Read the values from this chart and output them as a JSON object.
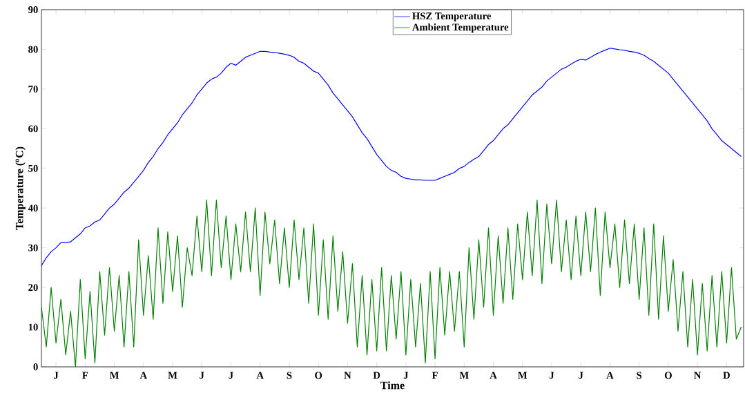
{
  "chart_data": {
    "type": "line",
    "xlabel": "Time",
    "ylabel": "Temperature ($^{o}$C)",
    "ylim": [
      0,
      90
    ],
    "yticks": [
      0,
      10,
      20,
      30,
      40,
      50,
      60,
      70,
      80,
      90
    ],
    "categories": [
      null,
      null,
      null,
      "J",
      null,
      null,
      null,
      null,
      null,
      "F",
      null,
      null,
      null,
      null,
      null,
      "M",
      null,
      null,
      null,
      null,
      null,
      "A",
      null,
      null,
      null,
      null,
      null,
      "M",
      null,
      null,
      null,
      null,
      null,
      "J",
      null,
      null,
      null,
      null,
      null,
      "J",
      null,
      null,
      null,
      null,
      null,
      "A",
      null,
      null,
      null,
      null,
      null,
      "S",
      null,
      null,
      null,
      null,
      null,
      "O",
      null,
      null,
      null,
      null,
      null,
      "N",
      null,
      null,
      null,
      null,
      null,
      "D",
      null,
      null,
      null,
      null,
      null,
      "J",
      null,
      null,
      null,
      null,
      null,
      "F",
      null,
      null,
      null,
      null,
      null,
      "M",
      null,
      null,
      null,
      null,
      null,
      "A",
      null,
      null,
      null,
      null,
      null,
      "M",
      null,
      null,
      null,
      null,
      null,
      "J",
      null,
      null,
      null,
      null,
      null,
      "J",
      null,
      null,
      null,
      null,
      null,
      "A",
      null,
      null,
      null,
      null,
      null,
      "S",
      null,
      null,
      null,
      null,
      null,
      "O",
      null,
      null,
      null,
      null,
      null,
      "N",
      null,
      null,
      null,
      null,
      null,
      "D",
      null,
      null,
      null
    ],
    "legend": "top",
    "marker": "none",
    "line_style": "solid",
    "series": [
      {
        "name": "HSZ Temperature",
        "color": "#0000ff",
        "values": [
          25.5,
          27.5,
          29,
          30,
          31.3,
          31.3,
          31.5,
          32.5,
          33.5,
          35,
          35.5,
          36.5,
          37,
          38.5,
          40,
          41,
          42.5,
          44,
          45,
          46.5,
          48,
          49.5,
          51.5,
          53,
          55,
          56.5,
          58.5,
          60,
          61.5,
          63.5,
          65,
          66.5,
          68.5,
          70,
          71.5,
          72.5,
          73,
          74,
          75.5,
          76.5,
          76,
          77,
          78,
          78.5,
          79,
          79.5,
          79.5,
          79.3,
          79.2,
          79,
          78.8,
          78.5,
          78,
          77,
          76.5,
          75.5,
          74.5,
          74,
          72.5,
          71,
          69,
          67.5,
          66,
          64.5,
          63,
          61,
          59,
          57.5,
          55.5,
          53.5,
          52,
          50.5,
          49.5,
          49,
          48,
          47.5,
          47.3,
          47.1,
          47.1,
          47,
          47,
          47,
          47.5,
          48,
          48.5,
          49,
          50,
          50.5,
          51.5,
          52.3,
          53,
          54.5,
          56,
          57,
          58.5,
          60,
          61,
          62.5,
          64,
          65.5,
          67,
          68.5,
          69.5,
          70.5,
          72,
          73,
          74,
          75,
          75.5,
          76.3,
          77,
          77.5,
          77.3,
          78,
          78.7,
          79.3,
          79.8,
          80.3,
          80.1,
          79.9,
          79.8,
          79.5,
          79.3,
          79,
          78.5,
          77.7,
          77,
          76,
          75,
          74,
          72.5,
          71,
          69.5,
          68,
          66.5,
          65,
          63.5,
          62,
          60,
          58.5,
          57,
          56,
          55,
          54,
          53
        ]
      },
      {
        "name": "Ambient Temperature",
        "color": "#008000",
        "values": [
          15,
          5,
          20,
          6,
          17,
          3,
          14,
          0,
          22,
          2,
          19,
          1,
          24,
          8,
          25,
          9,
          23,
          5,
          24,
          5,
          32,
          13,
          28,
          12,
          35,
          16,
          34,
          19,
          33,
          15,
          30,
          23,
          38,
          24,
          42,
          23,
          42,
          25,
          38,
          22,
          36,
          24,
          39,
          24,
          40,
          18,
          39,
          26,
          37,
          21,
          35,
          20,
          37,
          22,
          35,
          16,
          36,
          13,
          32,
          12,
          33,
          14,
          29,
          11,
          26,
          5,
          23,
          3,
          22,
          4,
          25,
          4,
          23,
          7,
          24,
          3,
          22,
          5,
          21,
          1,
          24,
          2,
          25,
          8,
          24,
          9,
          24,
          5,
          30,
          12,
          32,
          15,
          35,
          13,
          33,
          16,
          35,
          17,
          36,
          22,
          39,
          23,
          42,
          21,
          41,
          26,
          42,
          24,
          37,
          22,
          38,
          23,
          39,
          24,
          40,
          18,
          39,
          25,
          36,
          20,
          37,
          21,
          36,
          17,
          35,
          13,
          36,
          12,
          33,
          14,
          27,
          9,
          24,
          5,
          22,
          3,
          21,
          4,
          23,
          5,
          24,
          6,
          25,
          7,
          10
        ]
      }
    ]
  }
}
